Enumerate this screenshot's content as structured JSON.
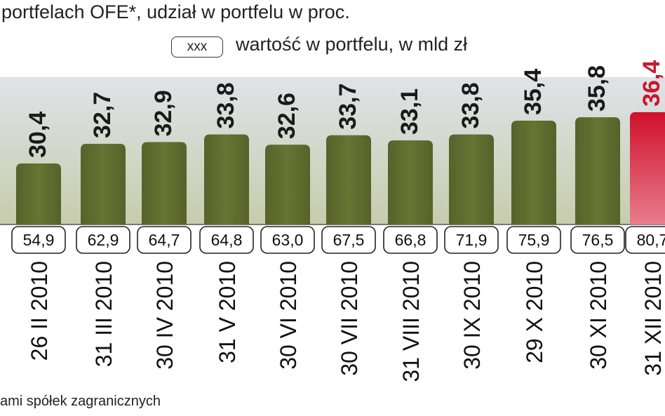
{
  "header": {
    "title": "portfelach OFE*, udział w portfelu w proc.",
    "legend_box_label": "xxx",
    "legend_text": "wartość w portfelu, w mld zł"
  },
  "footnote": "ami spółek zagranicznych",
  "colors": {
    "bar_default": "#5f6b2c",
    "bar_highlight": "#c8182f",
    "band_top": "#d9dde3",
    "band_bottom": "#c9cfb0"
  },
  "chart_data": {
    "type": "bar",
    "categories": [
      "26 II 2010",
      "31 III 2010",
      "30 IV 2010",
      "31 V 2010",
      "30 VI 2010",
      "30 VII 2010",
      "31 VIII 2010",
      "30 IX 2010",
      "29 X 2010",
      "30 XI 2010",
      "31 XII 2010"
    ],
    "series": [
      {
        "values": [
          30.4,
          32.7,
          32.9,
          33.8,
          32.6,
          33.7,
          33.1,
          33.8,
          35.4,
          35.8,
          36.4
        ]
      }
    ],
    "value_labels": [
      "30,4",
      "32,7",
      "32,9",
      "33,8",
      "32,6",
      "33,7",
      "33,1",
      "33,8",
      "35,4",
      "35,8",
      "36,4"
    ],
    "portfolio_values": [
      "54,9",
      "62,9",
      "64,7",
      "64,8",
      "63,0",
      "67,5",
      "66,8",
      "71,9",
      "75,9",
      "76,5",
      "80,7"
    ],
    "highlight_index": 10
  }
}
